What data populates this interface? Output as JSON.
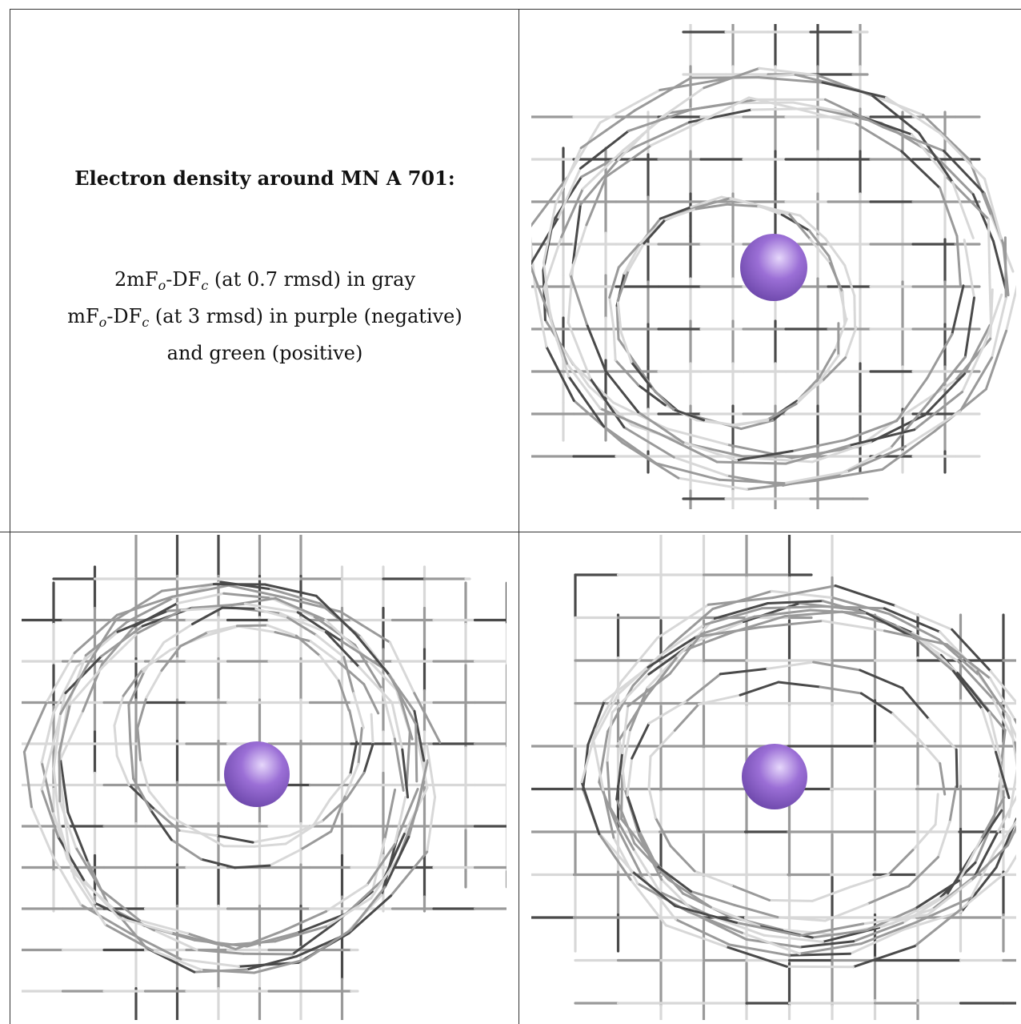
{
  "legend": {
    "title": "Electron density around MN A 701:",
    "line1": {
      "pre": "2mF",
      "sub1": "o",
      "mid": "-DF",
      "sub2": "c",
      "post": " (at 0.7 rmsd) in gray"
    },
    "line2": {
      "pre": "mF",
      "sub1": "o",
      "mid": "-DF",
      "sub2": "c",
      "post": " (at 3 rmsd) in purple (negative)"
    },
    "line3": "and green (positive)"
  },
  "colors": {
    "mesh": "#9a9a9a",
    "mesh_dark": "#4a4a4a",
    "mesh_light": "#d8d8d8",
    "ion": "#9b6fd6",
    "ion_highlight": "#e6d7fb",
    "frame": "#333333"
  },
  "panels": [
    {
      "name": "view-top-right",
      "atom": "MN A 701"
    },
    {
      "name": "view-bottom-left",
      "atom": "MN A 701"
    },
    {
      "name": "view-bottom-right",
      "atom": "MN A 701"
    }
  ]
}
